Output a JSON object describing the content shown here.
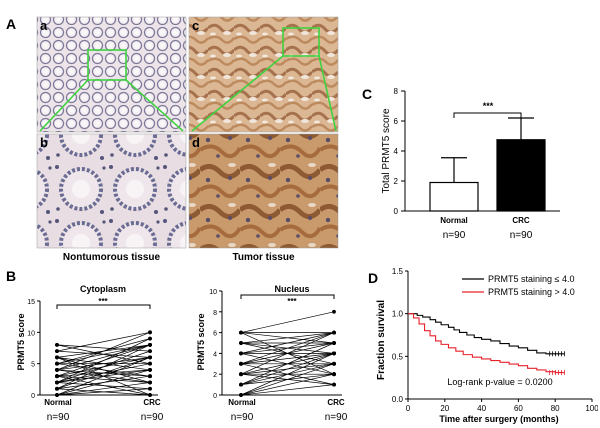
{
  "panel_labels": {
    "A": "A",
    "B": "B",
    "C": "C",
    "D": "D"
  },
  "panel_a": {
    "sub_labels": [
      "a",
      "b",
      "c",
      "d"
    ],
    "captions": {
      "left": "Nontumorous tissue",
      "right": "Tumor tissue"
    },
    "colors": {
      "zoom_box": "#3fd23f",
      "normal_bg": "#e9e2e6",
      "tumor_bg": "#d8b08a"
    }
  },
  "panel_c": {
    "ylabel": "Total PRMT5 score",
    "significance": "***",
    "bar_labels": [
      "Normal",
      "CRC"
    ],
    "n_labels": [
      "n=90",
      "n=90"
    ],
    "chart_data": {
      "type": "bar",
      "categories": [
        "Normal",
        "CRC"
      ],
      "values": [
        1.9,
        4.75
      ],
      "errors": [
        1.65,
        1.45
      ],
      "ylim": [
        0,
        8
      ],
      "yticks": [
        0,
        2,
        4,
        6,
        8
      ],
      "colors": [
        "#ffffff",
        "#000000"
      ]
    }
  },
  "panel_b": {
    "ylabel": "PRMT5 score",
    "significance": "***",
    "x_labels": [
      "Normal",
      "CRC"
    ],
    "n_labels": [
      "n=90",
      "n=90"
    ],
    "cytoplasm": {
      "title": "Cytoplasm",
      "chart_data": {
        "type": "line",
        "ylim": [
          0,
          15
        ],
        "yticks": [
          0,
          5,
          10,
          15
        ],
        "pairs": [
          [
            0,
            4
          ],
          [
            0,
            2
          ],
          [
            1,
            6
          ],
          [
            1,
            3
          ],
          [
            2,
            7
          ],
          [
            2,
            5
          ],
          [
            2,
            1
          ],
          [
            3,
            8
          ],
          [
            3,
            4
          ],
          [
            3,
            0
          ],
          [
            4,
            10
          ],
          [
            4,
            6
          ],
          [
            4,
            2
          ],
          [
            5,
            9
          ],
          [
            5,
            3
          ],
          [
            6,
            8
          ],
          [
            6,
            4
          ],
          [
            6,
            0
          ],
          [
            7,
            6
          ],
          [
            7,
            10
          ],
          [
            8,
            7
          ],
          [
            8,
            5
          ],
          [
            0,
            6
          ],
          [
            1,
            8
          ],
          [
            2,
            9
          ],
          [
            3,
            6
          ],
          [
            4,
            3
          ],
          [
            5,
            8
          ],
          [
            6,
            2
          ],
          [
            2,
            4
          ],
          [
            1,
            0
          ],
          [
            0,
            1
          ],
          [
            3,
            2
          ],
          [
            4,
            8
          ],
          [
            5,
            5
          ]
        ]
      }
    },
    "nucleus": {
      "title": "Nucleus",
      "chart_data": {
        "type": "line",
        "ylim": [
          0,
          10
        ],
        "yticks": [
          0,
          2,
          4,
          6,
          8,
          10
        ],
        "pairs": [
          [
            0,
            3
          ],
          [
            0,
            1
          ],
          [
            1,
            4
          ],
          [
            1,
            2
          ],
          [
            1,
            5
          ],
          [
            2,
            4
          ],
          [
            2,
            6
          ],
          [
            2,
            1
          ],
          [
            3,
            5
          ],
          [
            3,
            3
          ],
          [
            3,
            6
          ],
          [
            4,
            5
          ],
          [
            4,
            2
          ],
          [
            4,
            6
          ],
          [
            5,
            4
          ],
          [
            5,
            6
          ],
          [
            5,
            3
          ],
          [
            6,
            5
          ],
          [
            6,
            8
          ],
          [
            6,
            2
          ],
          [
            2,
            3
          ],
          [
            3,
            4
          ],
          [
            1,
            3
          ],
          [
            0,
            2
          ],
          [
            4,
            4
          ],
          [
            5,
            5
          ],
          [
            2,
            2
          ],
          [
            3,
            1
          ],
          [
            0,
            4
          ],
          [
            6,
            6
          ]
        ]
      }
    }
  },
  "panel_d": {
    "ylabel": "Fraction survival",
    "xlabel": "Time after surgery (months)",
    "annotation": "Log-rank p-value = 0.0200",
    "legend": [
      "PRMT5 staining ≤ 4.0",
      "PRMT5 staining > 4.0"
    ],
    "chart_data": {
      "type": "line",
      "xlim": [
        0,
        100
      ],
      "ylim": [
        0,
        1.5
      ],
      "xticks": [
        0,
        20,
        40,
        60,
        80,
        100
      ],
      "yticks": [
        0.0,
        0.5,
        1.0,
        1.5
      ],
      "series": [
        {
          "name": "PRMT5 staining ≤ 4.0",
          "color": "#000000",
          "x": [
            0,
            5,
            8,
            12,
            15,
            18,
            22,
            25,
            28,
            32,
            36,
            40,
            45,
            50,
            55,
            60,
            65,
            70,
            75,
            80,
            85
          ],
          "y": [
            1.0,
            0.98,
            0.96,
            0.93,
            0.9,
            0.87,
            0.84,
            0.81,
            0.78,
            0.75,
            0.72,
            0.7,
            0.68,
            0.65,
            0.62,
            0.6,
            0.57,
            0.54,
            0.53,
            0.53,
            0.53
          ]
        },
        {
          "name": "PRMT5 staining > 4.0",
          "color": "#e8202a",
          "x": [
            0,
            3,
            6,
            9,
            12,
            15,
            18,
            22,
            26,
            30,
            35,
            40,
            45,
            50,
            55,
            60,
            65,
            70,
            75,
            80,
            85
          ],
          "y": [
            1.0,
            0.95,
            0.88,
            0.8,
            0.74,
            0.68,
            0.64,
            0.6,
            0.56,
            0.52,
            0.49,
            0.47,
            0.45,
            0.43,
            0.41,
            0.39,
            0.36,
            0.34,
            0.32,
            0.31,
            0.31
          ]
        }
      ]
    }
  }
}
